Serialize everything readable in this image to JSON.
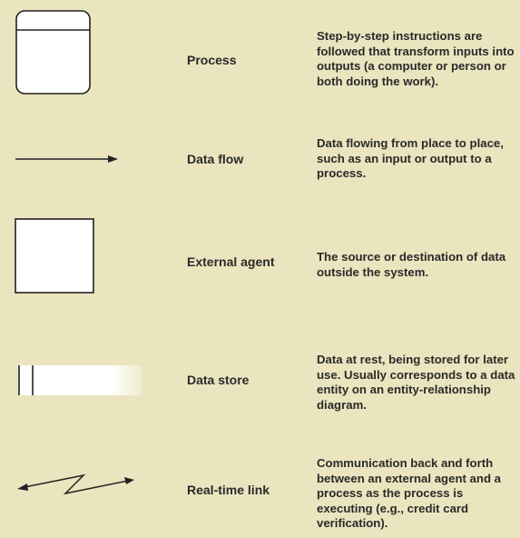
{
  "colors": {
    "background": "#eae5bf",
    "stroke": "#222222",
    "fill": "#ffffff"
  },
  "symbols": [
    {
      "icon": "process-symbol-icon",
      "name": "Process",
      "description": "Step-by-step instructions are followed that transform inputs into outputs (a computer or person or both doing the work)."
    },
    {
      "icon": "data-flow-arrow-icon",
      "name": "Data flow",
      "description": "Data flowing from place to place, such as an input or output to a process."
    },
    {
      "icon": "external-agent-square-icon",
      "name": "External agent",
      "description": "The source or destination of data outside the system."
    },
    {
      "icon": "data-store-icon",
      "name": "Data store",
      "description": "Data at rest, being stored for later use. Usually corresponds to a data entity on an entity-relationship diagram."
    },
    {
      "icon": "real-time-link-icon",
      "name": "Real-time link",
      "description": "Communication back and forth between an external agent and a process as the process is executing (e.g., credit card verification)."
    }
  ]
}
